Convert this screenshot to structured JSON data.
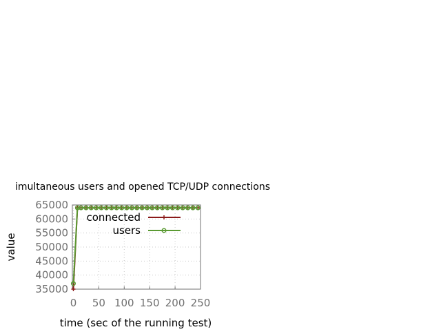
{
  "chart_data": {
    "type": "line",
    "title": "imultaneous users and opened TCP/UDP connections",
    "xlabel": "time (sec of the running test)",
    "ylabel": "value",
    "xlim": [
      -2,
      250
    ],
    "ylim": [
      35000,
      65000
    ],
    "x_ticks": [
      0,
      50,
      100,
      150,
      200,
      250
    ],
    "y_ticks": [
      35000,
      40000,
      45000,
      50000,
      55000,
      60000,
      65000
    ],
    "grid": true,
    "legend_position": "top-right",
    "series": [
      {
        "name": "connected",
        "color": "#8b1a1a",
        "marker": "plus",
        "x": [
          0,
          8,
          15,
          25,
          35,
          45,
          55,
          65,
          75,
          85,
          95,
          105,
          115,
          125,
          135,
          145,
          155,
          165,
          175,
          185,
          195,
          205,
          215,
          225,
          235,
          245
        ],
        "y": [
          35000,
          64000,
          64000,
          64000,
          64000,
          64000,
          64000,
          64000,
          64000,
          64000,
          64000,
          64000,
          64000,
          64000,
          64000,
          64000,
          64000,
          64000,
          64000,
          64000,
          64000,
          64000,
          64000,
          64000,
          64000,
          64000
        ]
      },
      {
        "name": "users",
        "color": "#5a9a32",
        "marker": "circle",
        "x": [
          0,
          8,
          15,
          25,
          35,
          45,
          55,
          65,
          75,
          85,
          95,
          105,
          115,
          125,
          135,
          145,
          155,
          165,
          175,
          185,
          195,
          205,
          215,
          225,
          235,
          245
        ],
        "y": [
          37000,
          64000,
          64000,
          64000,
          64000,
          64000,
          64000,
          64000,
          64000,
          64000,
          64000,
          64000,
          64000,
          64000,
          64000,
          64000,
          64000,
          64000,
          64000,
          64000,
          64000,
          64000,
          64000,
          64000,
          64000,
          64000
        ]
      }
    ]
  }
}
